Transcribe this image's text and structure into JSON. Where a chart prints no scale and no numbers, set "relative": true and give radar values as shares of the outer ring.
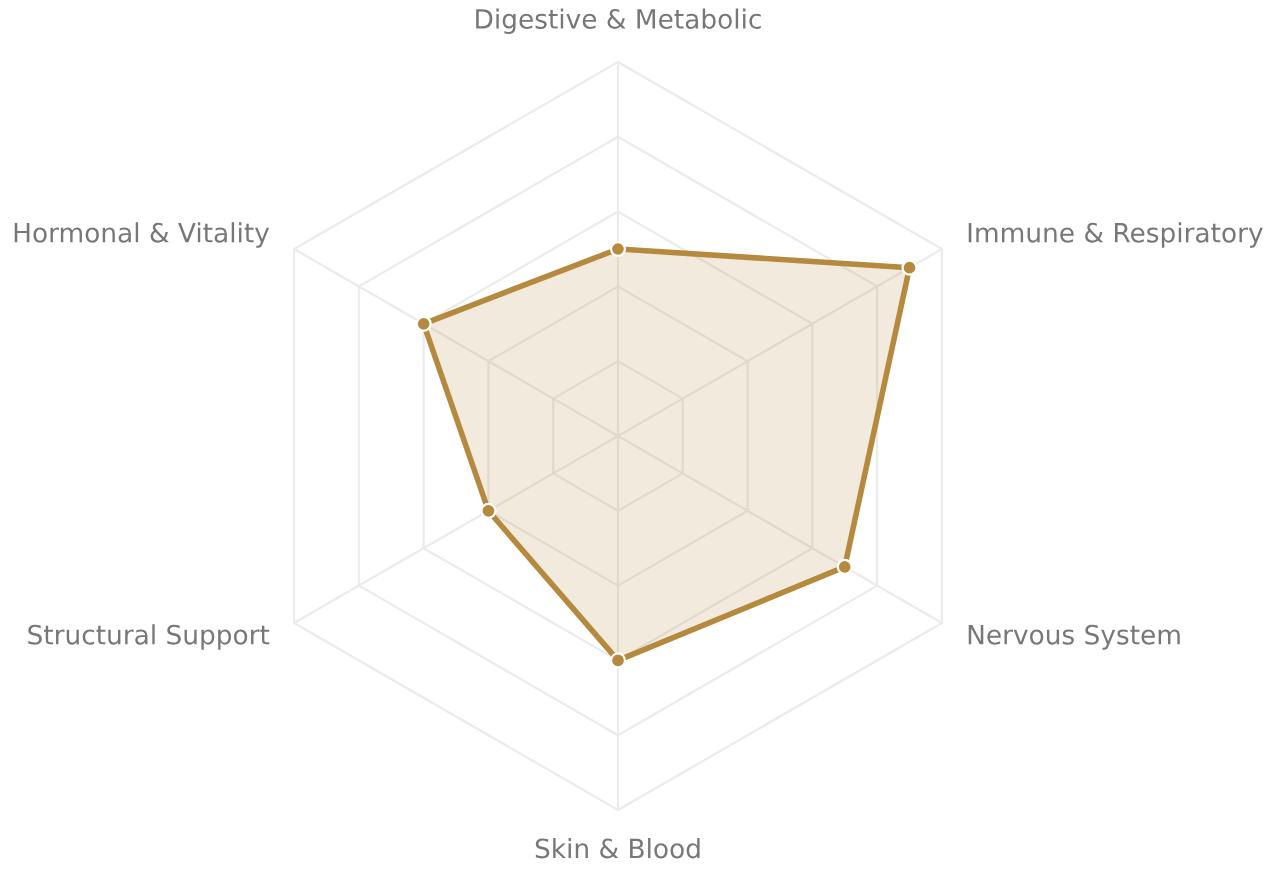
{
  "chart_data": {
    "type": "radar",
    "relative": true,
    "grid": true,
    "marker": "circle",
    "legend": false,
    "categories": [
      "Digestive & Metabolic",
      "Immune & Respiratory",
      "Nervous System",
      "Skin & Blood",
      "Structural Support",
      "Hormonal & Vitality"
    ],
    "series": [
      {
        "color": "#b5893e",
        "values": [
          0.5,
          0.9,
          0.7,
          0.6,
          0.4,
          0.6
        ]
      }
    ]
  }
}
